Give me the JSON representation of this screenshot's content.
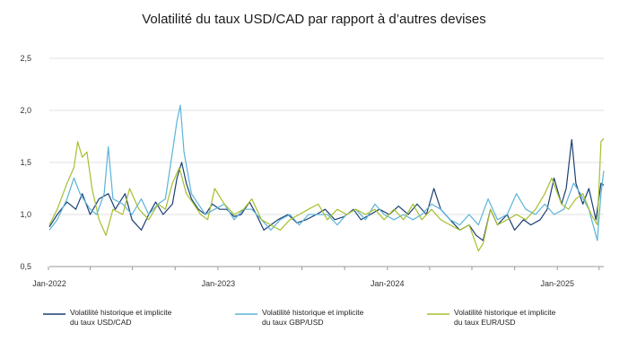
{
  "chart_data": {
    "type": "line",
    "title": "Volatilité du taux USD/CAD par rapport à d’autres devises",
    "xlabel": "",
    "ylabel": "",
    "x_range": [
      "2022-01-03",
      "2025-04-11"
    ],
    "ylim": [
      0.5,
      2.5
    ],
    "y_ticks": [
      0.5,
      1.0,
      1.5,
      2.0,
      2.5
    ],
    "y_tick_labels": [
      "0,5",
      "1,0",
      "1,5",
      "2,0",
      "2,5"
    ],
    "x_ticks": [
      "2022-01-03",
      "2023-01-02",
      "2024-01-01",
      "2025-01-01"
    ],
    "x_tick_labels": [
      "Jan-2022",
      "Jan-2023",
      "Jan-2024",
      "Jan-2025"
    ],
    "grid": "horizontal",
    "legend_position": "bottom",
    "series": [
      {
        "name": "Volatilité historique et implicite du taux USD/CAD",
        "color": "#1c3f73",
        "points": [
          [
            "2022-01-03",
            0.88
          ],
          [
            "2022-01-20",
            1.0
          ],
          [
            "2022-02-10",
            1.12
          ],
          [
            "2022-03-01",
            1.05
          ],
          [
            "2022-03-15",
            1.2
          ],
          [
            "2022-04-01",
            1.0
          ],
          [
            "2022-04-20",
            1.15
          ],
          [
            "2022-05-10",
            1.2
          ],
          [
            "2022-05-25",
            1.05
          ],
          [
            "2022-06-15",
            1.2
          ],
          [
            "2022-06-30",
            0.95
          ],
          [
            "2022-07-20",
            0.85
          ],
          [
            "2022-08-05",
            1.0
          ],
          [
            "2022-08-20",
            1.12
          ],
          [
            "2022-09-05",
            1.0
          ],
          [
            "2022-09-25",
            1.1
          ],
          [
            "2022-10-05",
            1.35
          ],
          [
            "2022-10-15",
            1.5
          ],
          [
            "2022-10-25",
            1.3
          ],
          [
            "2022-11-05",
            1.15
          ],
          [
            "2022-11-20",
            1.05
          ],
          [
            "2022-12-05",
            1.0
          ],
          [
            "2022-12-20",
            1.1
          ],
          [
            "2023-01-05",
            1.05
          ],
          [
            "2023-01-20",
            1.05
          ],
          [
            "2023-02-05",
            0.98
          ],
          [
            "2023-02-20",
            1.0
          ],
          [
            "2023-03-10",
            1.12
          ],
          [
            "2023-03-25",
            1.0
          ],
          [
            "2023-04-10",
            0.85
          ],
          [
            "2023-04-25",
            0.9
          ],
          [
            "2023-05-10",
            0.95
          ],
          [
            "2023-06-01",
            1.0
          ],
          [
            "2023-06-20",
            0.92
          ],
          [
            "2023-07-10",
            0.95
          ],
          [
            "2023-08-01",
            1.0
          ],
          [
            "2023-08-20",
            1.05
          ],
          [
            "2023-09-10",
            0.95
          ],
          [
            "2023-09-30",
            0.98
          ],
          [
            "2023-10-20",
            1.05
          ],
          [
            "2023-11-05",
            0.95
          ],
          [
            "2023-11-25",
            1.0
          ],
          [
            "2023-12-15",
            1.05
          ],
          [
            "2024-01-05",
            1.0
          ],
          [
            "2024-01-25",
            1.08
          ],
          [
            "2024-02-15",
            1.0
          ],
          [
            "2024-03-05",
            1.1
          ],
          [
            "2024-03-25",
            1.0
          ],
          [
            "2024-04-10",
            1.25
          ],
          [
            "2024-04-25",
            1.05
          ],
          [
            "2024-05-15",
            0.95
          ],
          [
            "2024-06-05",
            0.85
          ],
          [
            "2024-06-25",
            0.9
          ],
          [
            "2024-07-10",
            0.8
          ],
          [
            "2024-07-25",
            0.75
          ],
          [
            "2024-08-10",
            1.05
          ],
          [
            "2024-08-25",
            0.9
          ],
          [
            "2024-09-15",
            1.0
          ],
          [
            "2024-10-01",
            0.85
          ],
          [
            "2024-10-20",
            0.95
          ],
          [
            "2024-11-05",
            0.9
          ],
          [
            "2024-11-25",
            0.95
          ],
          [
            "2024-12-10",
            1.05
          ],
          [
            "2024-12-25",
            1.35
          ],
          [
            "2025-01-10",
            1.1
          ],
          [
            "2025-01-20",
            1.25
          ],
          [
            "2025-02-01",
            1.72
          ],
          [
            "2025-02-10",
            1.3
          ],
          [
            "2025-02-25",
            1.1
          ],
          [
            "2025-03-10",
            1.25
          ],
          [
            "2025-03-25",
            0.95
          ],
          [
            "2025-04-05",
            1.3
          ],
          [
            "2025-04-11",
            1.28
          ]
        ]
      },
      {
        "name": "Volatilité historique et implicite du taux GBP/USD",
        "color": "#5bb3d9",
        "points": [
          [
            "2022-01-03",
            0.85
          ],
          [
            "2022-01-20",
            0.95
          ],
          [
            "2022-02-10",
            1.15
          ],
          [
            "2022-02-25",
            1.35
          ],
          [
            "2022-03-10",
            1.2
          ],
          [
            "2022-04-01",
            1.05
          ],
          [
            "2022-04-15",
            1.0
          ],
          [
            "2022-05-01",
            1.2
          ],
          [
            "2022-05-10",
            1.65
          ],
          [
            "2022-05-20",
            1.15
          ],
          [
            "2022-06-10",
            1.1
          ],
          [
            "2022-06-30",
            1.0
          ],
          [
            "2022-07-20",
            1.15
          ],
          [
            "2022-08-05",
            1.0
          ],
          [
            "2022-08-25",
            1.1
          ],
          [
            "2022-09-10",
            1.15
          ],
          [
            "2022-09-25",
            1.6
          ],
          [
            "2022-10-05",
            1.9
          ],
          [
            "2022-10-12",
            2.05
          ],
          [
            "2022-10-20",
            1.6
          ],
          [
            "2022-11-05",
            1.2
          ],
          [
            "2022-11-20",
            1.1
          ],
          [
            "2022-12-05",
            1.0
          ],
          [
            "2022-12-25",
            1.05
          ],
          [
            "2023-01-15",
            1.1
          ],
          [
            "2023-02-05",
            0.95
          ],
          [
            "2023-02-25",
            1.05
          ],
          [
            "2023-03-15",
            1.05
          ],
          [
            "2023-04-05",
            0.95
          ],
          [
            "2023-04-25",
            0.85
          ],
          [
            "2023-05-15",
            0.95
          ],
          [
            "2023-06-05",
            1.0
          ],
          [
            "2023-06-25",
            0.9
          ],
          [
            "2023-07-15",
            1.0
          ],
          [
            "2023-08-05",
            1.0
          ],
          [
            "2023-08-25",
            1.0
          ],
          [
            "2023-09-15",
            0.9
          ],
          [
            "2023-10-05",
            1.0
          ],
          [
            "2023-10-25",
            1.05
          ],
          [
            "2023-11-15",
            0.95
          ],
          [
            "2023-12-05",
            1.1
          ],
          [
            "2023-12-25",
            1.0
          ],
          [
            "2024-01-15",
            0.95
          ],
          [
            "2024-02-05",
            1.0
          ],
          [
            "2024-02-25",
            0.95
          ],
          [
            "2024-03-15",
            1.0
          ],
          [
            "2024-04-05",
            1.1
          ],
          [
            "2024-04-25",
            1.05
          ],
          [
            "2024-05-15",
            0.95
          ],
          [
            "2024-06-05",
            0.9
          ],
          [
            "2024-06-25",
            1.0
          ],
          [
            "2024-07-15",
            0.9
          ],
          [
            "2024-08-05",
            1.15
          ],
          [
            "2024-08-25",
            0.95
          ],
          [
            "2024-09-15",
            1.0
          ],
          [
            "2024-10-05",
            1.2
          ],
          [
            "2024-10-25",
            1.05
          ],
          [
            "2024-11-15",
            1.0
          ],
          [
            "2024-12-05",
            1.1
          ],
          [
            "2024-12-25",
            1.0
          ],
          [
            "2025-01-15",
            1.05
          ],
          [
            "2025-02-05",
            1.3
          ],
          [
            "2025-02-20",
            1.2
          ],
          [
            "2025-03-10",
            1.05
          ],
          [
            "2025-03-28",
            0.75
          ],
          [
            "2025-04-05",
            1.2
          ],
          [
            "2025-04-11",
            1.42
          ]
        ]
      },
      {
        "name": "Volatilité historique et implicite du taux EUR/USD",
        "color": "#a6bf2e",
        "points": [
          [
            "2022-01-03",
            0.9
          ],
          [
            "2022-01-20",
            1.05
          ],
          [
            "2022-02-10",
            1.3
          ],
          [
            "2022-02-25",
            1.45
          ],
          [
            "2022-03-05",
            1.7
          ],
          [
            "2022-03-15",
            1.55
          ],
          [
            "2022-03-25",
            1.6
          ],
          [
            "2022-04-05",
            1.25
          ],
          [
            "2022-04-20",
            0.95
          ],
          [
            "2022-05-05",
            0.8
          ],
          [
            "2022-05-20",
            1.05
          ],
          [
            "2022-06-10",
            1.0
          ],
          [
            "2022-06-25",
            1.25
          ],
          [
            "2022-07-15",
            1.05
          ],
          [
            "2022-08-05",
            0.95
          ],
          [
            "2022-08-25",
            1.1
          ],
          [
            "2022-09-10",
            1.05
          ],
          [
            "2022-09-25",
            1.3
          ],
          [
            "2022-10-10",
            1.45
          ],
          [
            "2022-10-25",
            1.2
          ],
          [
            "2022-11-10",
            1.1
          ],
          [
            "2022-11-25",
            1.0
          ],
          [
            "2022-12-10",
            0.95
          ],
          [
            "2022-12-25",
            1.25
          ],
          [
            "2023-01-15",
            1.1
          ],
          [
            "2023-02-05",
            1.0
          ],
          [
            "2023-02-25",
            1.05
          ],
          [
            "2023-03-15",
            1.15
          ],
          [
            "2023-04-05",
            0.95
          ],
          [
            "2023-04-25",
            0.9
          ],
          [
            "2023-05-15",
            0.85
          ],
          [
            "2023-06-05",
            0.95
          ],
          [
            "2023-06-25",
            1.0
          ],
          [
            "2023-07-15",
            1.05
          ],
          [
            "2023-08-05",
            1.1
          ],
          [
            "2023-08-25",
            0.95
          ],
          [
            "2023-09-15",
            1.05
          ],
          [
            "2023-10-05",
            1.0
          ],
          [
            "2023-10-25",
            1.05
          ],
          [
            "2023-11-15",
            1.0
          ],
          [
            "2023-12-05",
            1.05
          ],
          [
            "2023-12-25",
            0.95
          ],
          [
            "2024-01-15",
            1.05
          ],
          [
            "2024-02-05",
            0.95
          ],
          [
            "2024-02-25",
            1.1
          ],
          [
            "2024-03-15",
            0.95
          ],
          [
            "2024-04-05",
            1.05
          ],
          [
            "2024-04-25",
            0.95
          ],
          [
            "2024-05-15",
            0.9
          ],
          [
            "2024-06-05",
            0.85
          ],
          [
            "2024-06-25",
            0.9
          ],
          [
            "2024-07-15",
            0.65
          ],
          [
            "2024-07-25",
            0.72
          ],
          [
            "2024-08-10",
            1.05
          ],
          [
            "2024-08-25",
            0.9
          ],
          [
            "2024-09-15",
            0.95
          ],
          [
            "2024-10-05",
            1.0
          ],
          [
            "2024-10-25",
            0.95
          ],
          [
            "2024-11-15",
            1.05
          ],
          [
            "2024-12-05",
            1.2
          ],
          [
            "2024-12-20",
            1.35
          ],
          [
            "2025-01-10",
            1.1
          ],
          [
            "2025-01-25",
            1.05
          ],
          [
            "2025-02-10",
            1.15
          ],
          [
            "2025-02-25",
            1.2
          ],
          [
            "2025-03-15",
            1.0
          ],
          [
            "2025-03-28",
            0.9
          ],
          [
            "2025-04-05",
            1.7
          ],
          [
            "2025-04-11",
            1.73
          ]
        ]
      }
    ]
  }
}
